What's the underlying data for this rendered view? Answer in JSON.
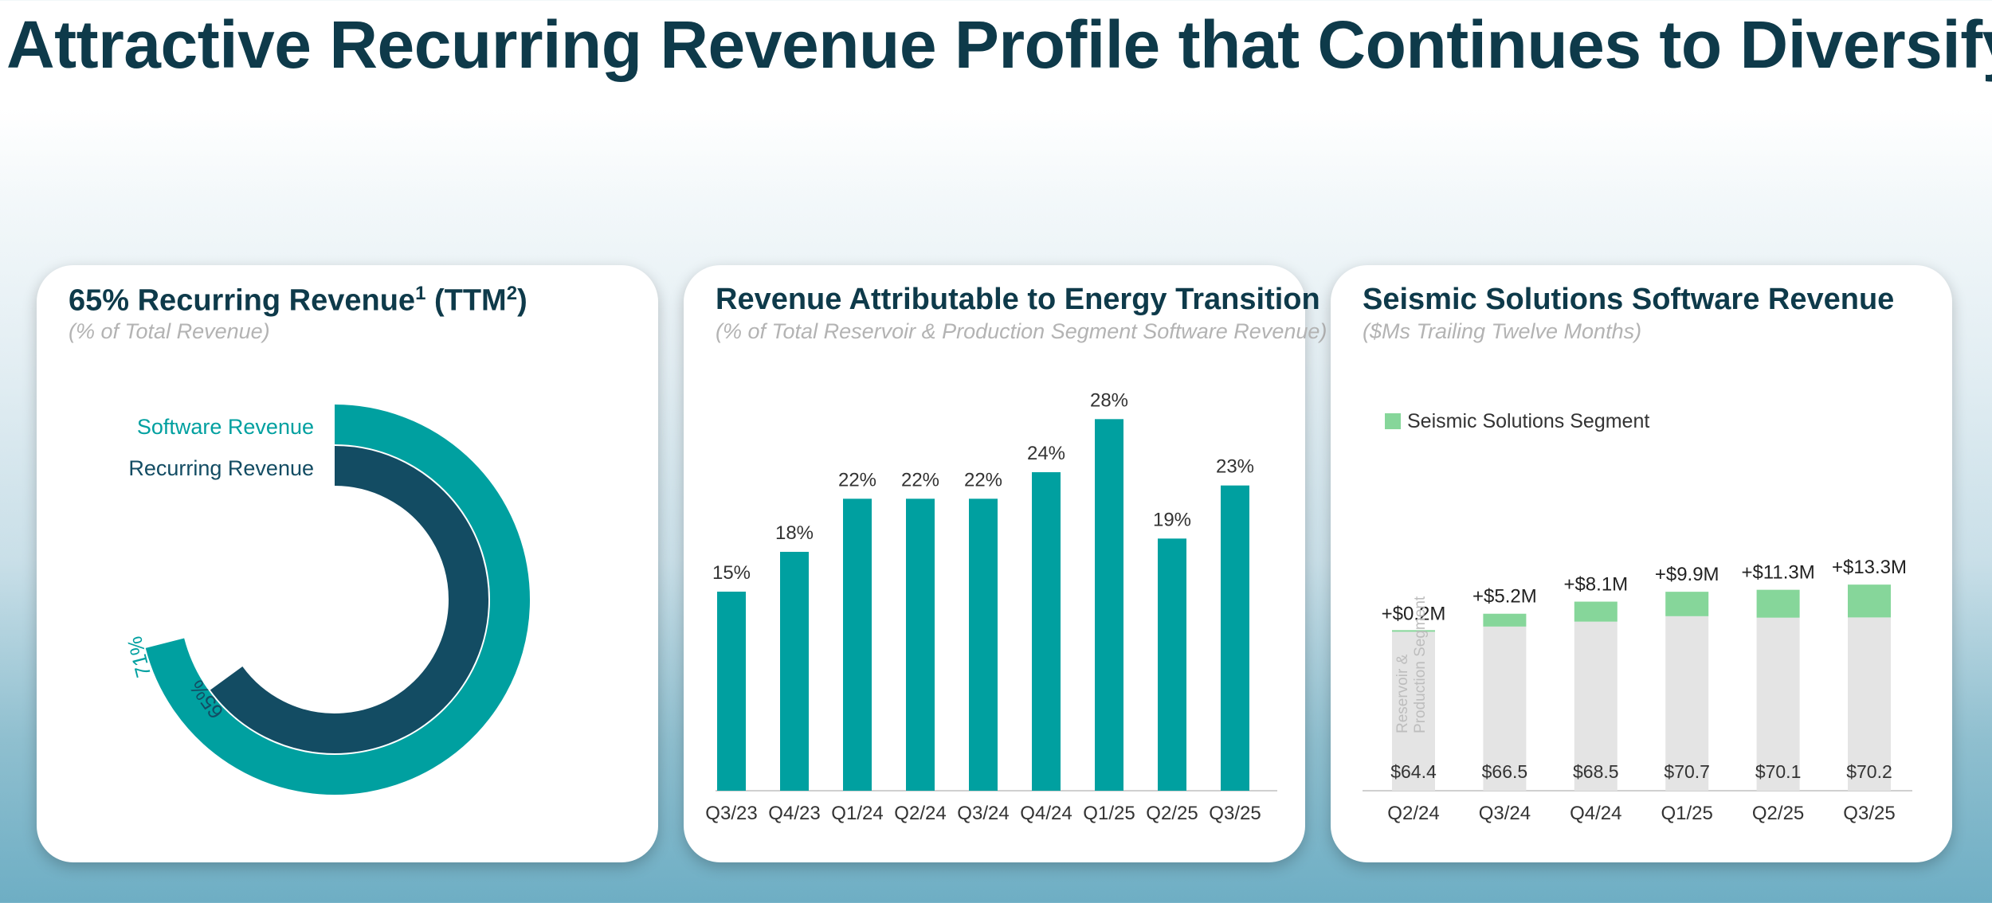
{
  "header": {
    "title": "Attractive Recurring Revenue Profile that Continues to Diversify"
  },
  "cards": [
    {
      "title": "65% Recurring Revenue",
      "title_sup1": "1",
      "title_mid": " (TTM",
      "title_sup2": "2",
      "title_end": ")",
      "subtitle": "(% of Total Revenue)"
    },
    {
      "title": "Revenue Attributable to Energy Transition",
      "subtitle": "(% of Total Reservoir & Production Segment Software Revenue)"
    },
    {
      "title": "Seismic Solutions Software Revenue",
      "subtitle": "($Ms Trailing Twelve Months)"
    }
  ],
  "colors": {
    "teal": "#00a0a0",
    "navy": "#134c63",
    "green": "#86d69a",
    "gray": "#e4e4e4",
    "text": "#333333"
  },
  "chart_data": [
    {
      "type": "pie",
      "subtype": "radial-bar",
      "series": [
        {
          "name": "Software Revenue",
          "value": 71,
          "label": "71%",
          "color": "#00a0a0"
        },
        {
          "name": "Recurring Revenue",
          "value": 65,
          "label": "65%",
          "color": "#134c63"
        }
      ]
    },
    {
      "type": "bar",
      "categories": [
        "Q3/23",
        "Q4/23",
        "Q1/24",
        "Q2/24",
        "Q3/24",
        "Q4/24",
        "Q1/25",
        "Q2/25",
        "Q3/25"
      ],
      "values": [
        15,
        18,
        22,
        22,
        22,
        24,
        28,
        19,
        23
      ],
      "labels": [
        "15%",
        "18%",
        "22%",
        "22%",
        "22%",
        "24%",
        "28%",
        "19%",
        "23%"
      ],
      "color": "#00a0a0",
      "ylim": [
        0,
        30
      ]
    },
    {
      "type": "bar",
      "stacked": true,
      "categories": [
        "Q2/24",
        "Q3/24",
        "Q4/24",
        "Q1/25",
        "Q2/25",
        "Q3/25"
      ],
      "series": [
        {
          "name": "Reservoir & Production Segment",
          "values": [
            64.4,
            66.5,
            68.5,
            70.7,
            70.1,
            70.2
          ],
          "labels": [
            "$64.4",
            "$66.5",
            "$68.5",
            "$70.7",
            "$70.1",
            "$70.2"
          ],
          "color": "#e4e4e4"
        },
        {
          "name": "Seismic Solutions Segment",
          "values": [
            0.2,
            5.2,
            8.1,
            9.9,
            11.3,
            13.3
          ],
          "labels": [
            "+$0.2M",
            "+$5.2M",
            "+$8.1M",
            "+$9.9M",
            "+$11.3M",
            "+$13.3M"
          ],
          "color": "#86d69a"
        }
      ],
      "legend": "top-left",
      "ylim": [
        0,
        90
      ]
    }
  ]
}
